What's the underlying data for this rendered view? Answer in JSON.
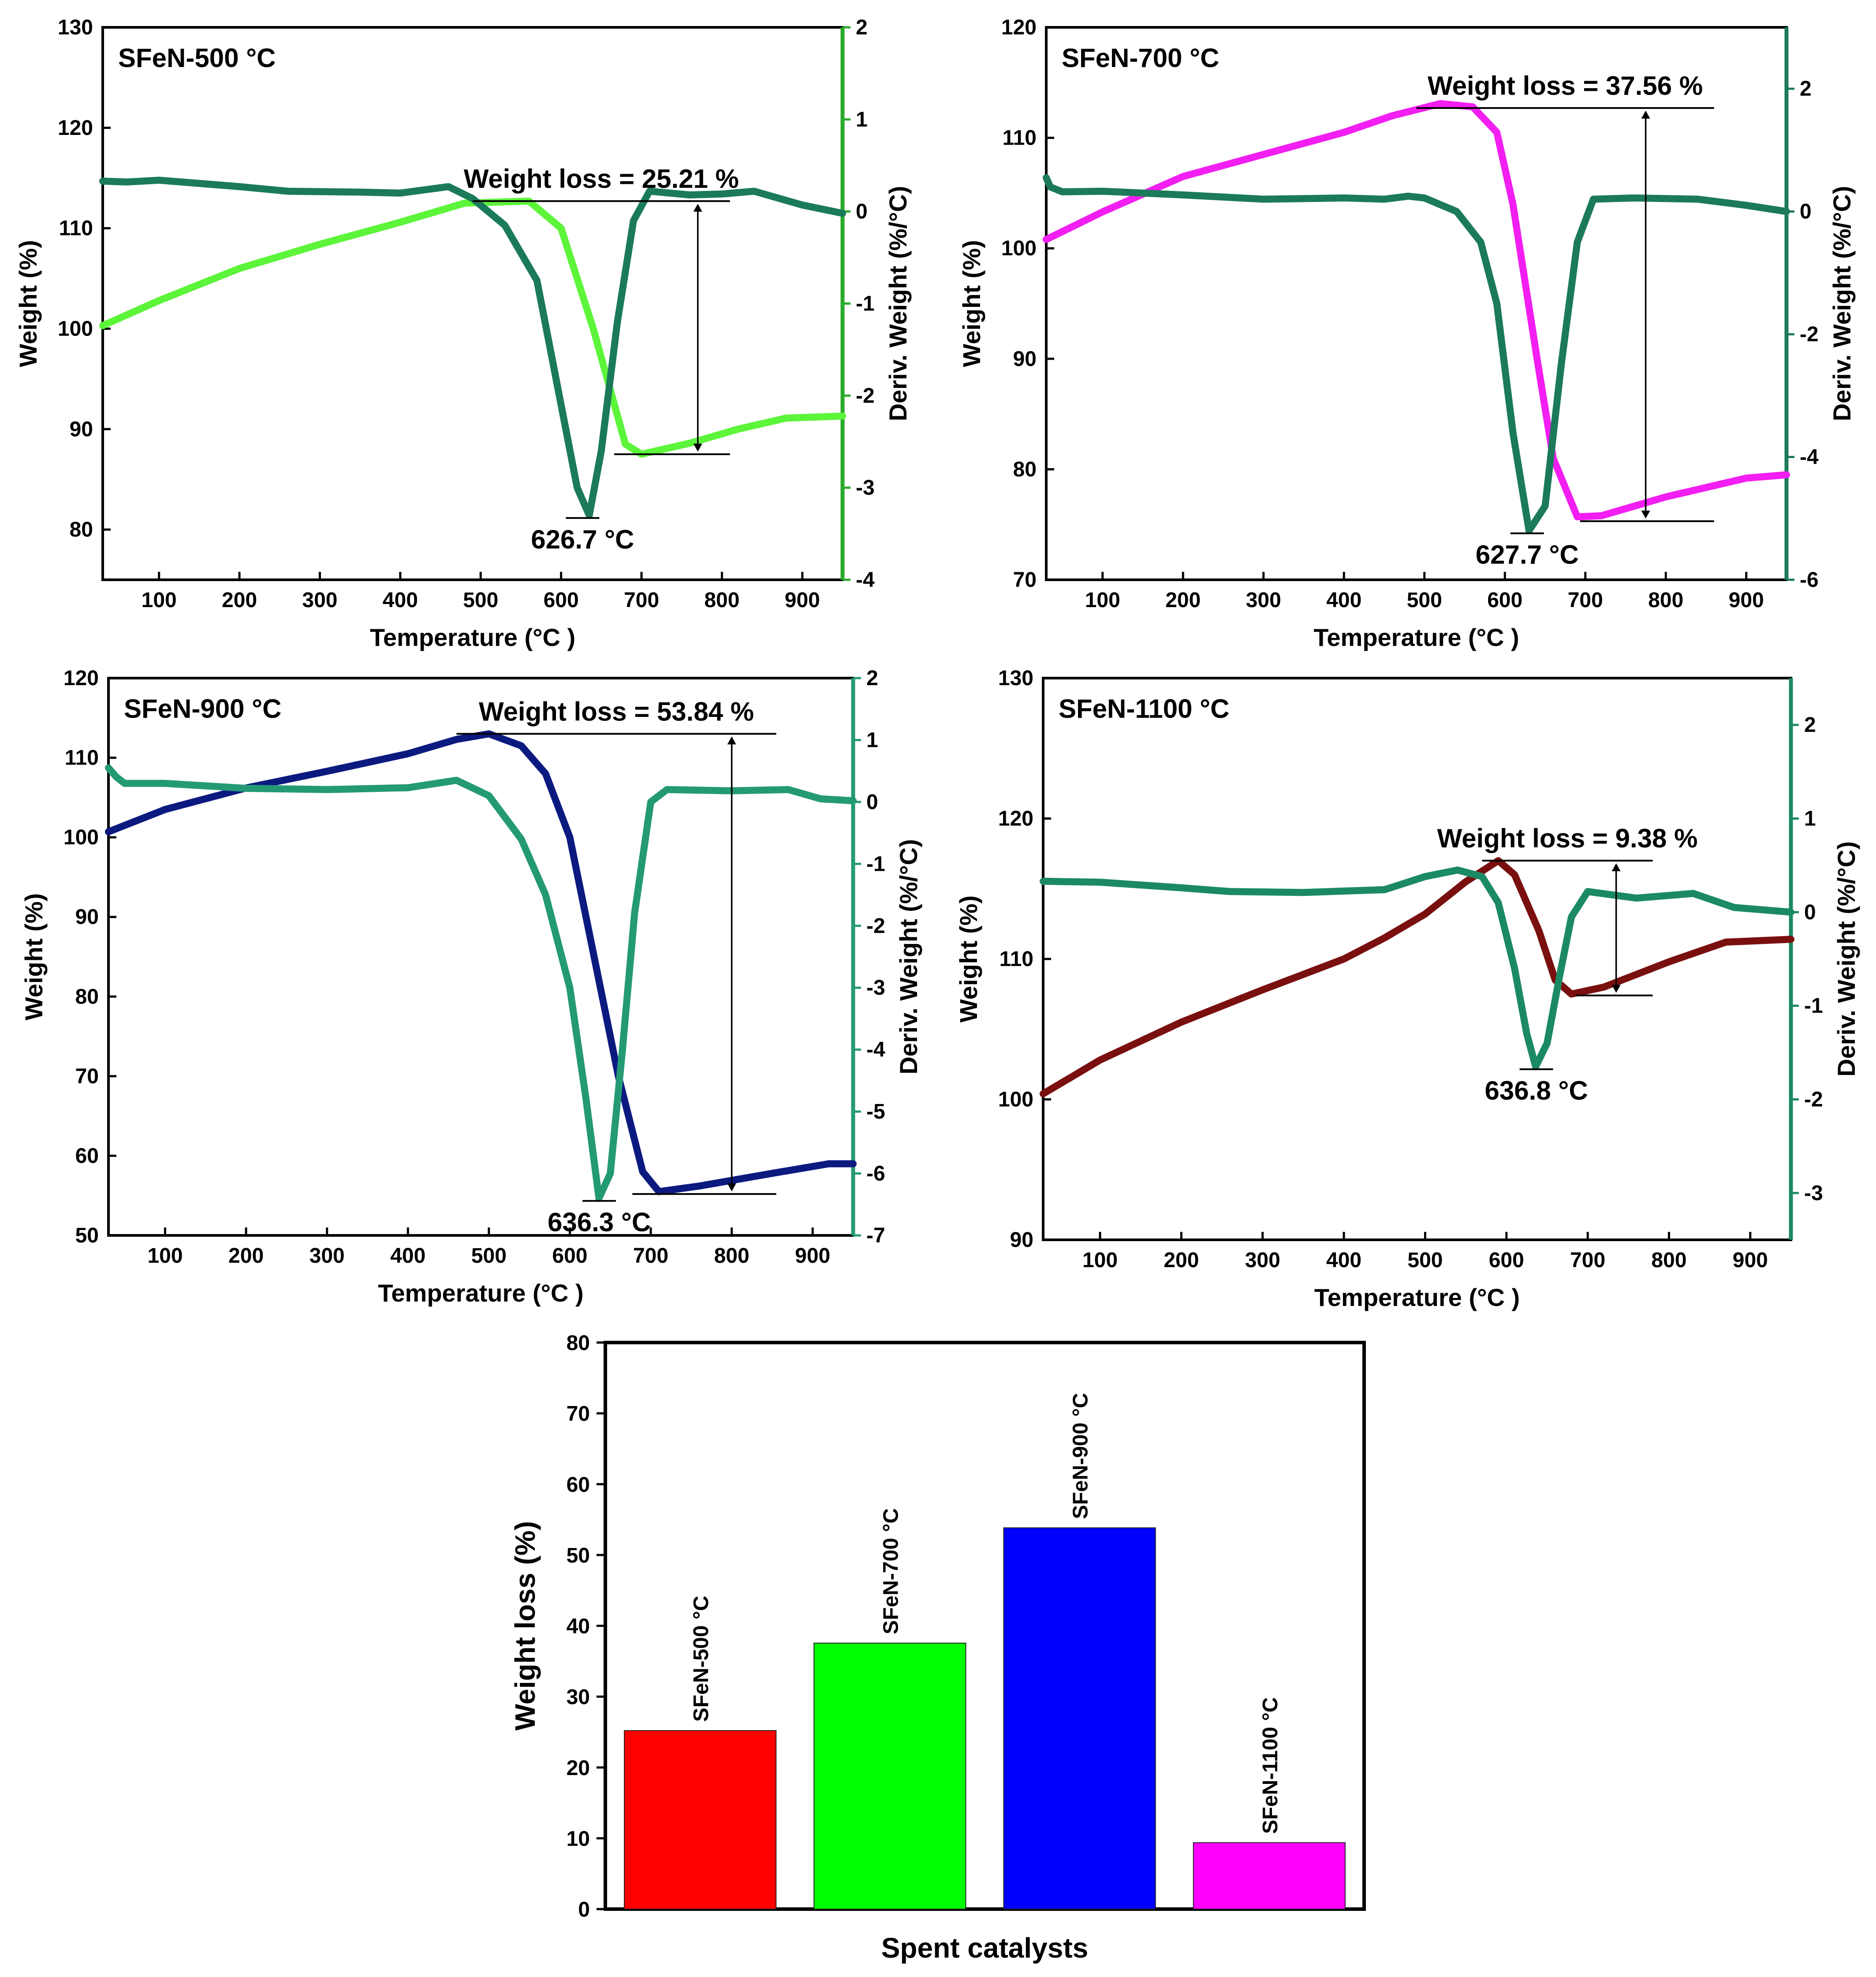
{
  "chart_data": [
    {
      "type": "line",
      "title": "SFeN-500 °C",
      "xlabel": "Temperature  (°C )",
      "ylabel": "Weight (%)",
      "y2label": "Deriv. Weight (%/°C)",
      "xlim": [
        30,
        950
      ],
      "ylim": [
        75,
        130
      ],
      "y2lim": [
        -4,
        2
      ],
      "xticks": [
        100,
        200,
        300,
        400,
        500,
        600,
        700,
        800,
        900
      ],
      "yticks": [
        80,
        90,
        100,
        110,
        120,
        130
      ],
      "y2ticks": [
        -4,
        -3,
        -2,
        -1,
        0,
        1,
        2
      ],
      "colors": {
        "weight": "#5cf53a",
        "deriv": "#1b7a5a",
        "axis_right": "#2aaa2a"
      },
      "peak_label": "626.7 °C",
      "peak_temp": 626.7,
      "loss_label": "Weight loss = 25.21 %",
      "loss": {
        "x1": 490,
        "y_top": 112.7,
        "x2": 810,
        "y_bottom": 87.5,
        "x_arrow": 770
      },
      "series": [
        {
          "name": "Weight",
          "axis": "left",
          "points": [
            [
              30,
              100.3
            ],
            [
              100,
              102.8
            ],
            [
              200,
              106.0
            ],
            [
              300,
              108.4
            ],
            [
              400,
              110.6
            ],
            [
              480,
              112.5
            ],
            [
              560,
              112.7
            ],
            [
              600,
              110.0
            ],
            [
              640,
              100.0
            ],
            [
              680,
              88.5
            ],
            [
              700,
              87.5
            ],
            [
              760,
              88.6
            ],
            [
              820,
              90.0
            ],
            [
              880,
              91.1
            ],
            [
              950,
              91.3
            ]
          ]
        },
        {
          "name": "Deriv. Weight",
          "axis": "right",
          "points": [
            [
              30,
              0.33
            ],
            [
              60,
              0.32
            ],
            [
              100,
              0.34
            ],
            [
              200,
              0.27
            ],
            [
              260,
              0.22
            ],
            [
              350,
              0.21
            ],
            [
              400,
              0.2
            ],
            [
              460,
              0.27
            ],
            [
              490,
              0.14
            ],
            [
              530,
              -0.15
            ],
            [
              570,
              -0.75
            ],
            [
              600,
              -2.1
            ],
            [
              620,
              -3.0
            ],
            [
              635,
              -3.3
            ],
            [
              650,
              -2.6
            ],
            [
              670,
              -1.2
            ],
            [
              690,
              -0.1
            ],
            [
              710,
              0.22
            ],
            [
              760,
              0.18
            ],
            [
              800,
              0.19
            ],
            [
              840,
              0.22
            ],
            [
              900,
              0.07
            ],
            [
              950,
              -0.02
            ]
          ]
        }
      ]
    },
    {
      "type": "line",
      "title": "SFeN-700 °C",
      "xlabel": "Temperature  (°C )",
      "ylabel": "Weight (%)",
      "y2label": "Deriv. Weight (%/°C)",
      "xlim": [
        30,
        950
      ],
      "ylim": [
        70,
        120
      ],
      "y2lim": [
        -6,
        3
      ],
      "xticks": [
        100,
        200,
        300,
        400,
        500,
        600,
        700,
        800,
        900
      ],
      "yticks": [
        70,
        80,
        90,
        100,
        110,
        120
      ],
      "y2ticks": [
        -6,
        -4,
        -2,
        0,
        2
      ],
      "colors": {
        "weight": "#f21ef2",
        "deriv": "#1b7a5a",
        "axis_right": "#1b7a5a"
      },
      "peak_label": "627.7 °C",
      "peak_temp": 627.7,
      "loss_label": "Weight loss = 37.56 %",
      "loss": {
        "x1": 490,
        "y_top": 112.7,
        "x2": 860,
        "y_bottom": 75.3,
        "x_arrow": 775
      },
      "series": [
        {
          "name": "Weight",
          "axis": "left",
          "points": [
            [
              30,
              100.8
            ],
            [
              100,
              103.3
            ],
            [
              200,
              106.5
            ],
            [
              300,
              108.5
            ],
            [
              400,
              110.5
            ],
            [
              460,
              112.0
            ],
            [
              520,
              113.1
            ],
            [
              560,
              112.8
            ],
            [
              590,
              110.5
            ],
            [
              610,
              104.0
            ],
            [
              640,
              90.0
            ],
            [
              660,
              81.0
            ],
            [
              690,
              75.7
            ],
            [
              720,
              75.8
            ],
            [
              800,
              77.5
            ],
            [
              900,
              79.2
            ],
            [
              950,
              79.5
            ]
          ]
        },
        {
          "name": "Deriv. Weight",
          "axis": "right",
          "points": [
            [
              30,
              0.55
            ],
            [
              35,
              0.4
            ],
            [
              50,
              0.32
            ],
            [
              100,
              0.33
            ],
            [
              200,
              0.27
            ],
            [
              300,
              0.2
            ],
            [
              400,
              0.22
            ],
            [
              450,
              0.2
            ],
            [
              480,
              0.25
            ],
            [
              500,
              0.22
            ],
            [
              540,
              0.0
            ],
            [
              570,
              -0.5
            ],
            [
              590,
              -1.5
            ],
            [
              610,
              -3.6
            ],
            [
              630,
              -5.2
            ],
            [
              650,
              -4.8
            ],
            [
              670,
              -2.5
            ],
            [
              690,
              -0.5
            ],
            [
              710,
              0.2
            ],
            [
              760,
              0.22
            ],
            [
              840,
              0.2
            ],
            [
              900,
              0.1
            ],
            [
              950,
              0.0
            ]
          ]
        }
      ]
    },
    {
      "type": "line",
      "title": "SFeN-900 °C",
      "xlabel": "Temperature  (°C )",
      "ylabel": "Weight (%)",
      "y2label": "Deriv. Weight (%/°C)",
      "xlim": [
        30,
        950
      ],
      "ylim": [
        50,
        120
      ],
      "y2lim": [
        -7,
        2
      ],
      "xticks": [
        100,
        200,
        300,
        400,
        500,
        600,
        700,
        800,
        900
      ],
      "yticks": [
        50,
        60,
        70,
        80,
        90,
        100,
        110,
        120
      ],
      "y2ticks": [
        -7,
        -6,
        -5,
        -4,
        -3,
        -2,
        -1,
        0,
        1,
        2
      ],
      "colors": {
        "weight": "#0c1a80",
        "deriv": "#249a74",
        "axis_right": "#249a74"
      },
      "peak_label": "636.3 °C",
      "peak_temp": 636.3,
      "loss_label": "Weight loss = 53.84 %",
      "loss": {
        "x1": 460,
        "y_top": 113.0,
        "x2": 855,
        "y_bottom": 55.2,
        "x_arrow": 800
      },
      "series": [
        {
          "name": "Weight",
          "axis": "left",
          "points": [
            [
              30,
              100.7
            ],
            [
              100,
              103.5
            ],
            [
              200,
              106.2
            ],
            [
              300,
              108.3
            ],
            [
              400,
              110.5
            ],
            [
              460,
              112.3
            ],
            [
              500,
              113.0
            ],
            [
              540,
              111.5
            ],
            [
              570,
              108.0
            ],
            [
              600,
              100.0
            ],
            [
              630,
              85.0
            ],
            [
              660,
              70.0
            ],
            [
              690,
              58.0
            ],
            [
              710,
              55.5
            ],
            [
              760,
              56.2
            ],
            [
              850,
              57.8
            ],
            [
              920,
              59.0
            ],
            [
              950,
              59.0
            ]
          ]
        },
        {
          "name": "Deriv. Weight",
          "axis": "right",
          "points": [
            [
              30,
              0.55
            ],
            [
              40,
              0.4
            ],
            [
              50,
              0.3
            ],
            [
              100,
              0.3
            ],
            [
              200,
              0.22
            ],
            [
              300,
              0.2
            ],
            [
              400,
              0.23
            ],
            [
              460,
              0.35
            ],
            [
              500,
              0.1
            ],
            [
              540,
              -0.6
            ],
            [
              570,
              -1.5
            ],
            [
              600,
              -3.0
            ],
            [
              620,
              -4.8
            ],
            [
              636,
              -6.4
            ],
            [
              650,
              -6.0
            ],
            [
              665,
              -4.0
            ],
            [
              680,
              -1.8
            ],
            [
              700,
              0.0
            ],
            [
              720,
              0.2
            ],
            [
              800,
              0.18
            ],
            [
              870,
              0.2
            ],
            [
              910,
              0.05
            ],
            [
              950,
              0.02
            ]
          ]
        }
      ]
    },
    {
      "type": "line",
      "title": "SFeN-1100 °C",
      "xlabel": "Temperature  (°C )",
      "ylabel": "Weight (%)",
      "y2label": "Deriv. Weight (%/°C)",
      "xlim": [
        30,
        950
      ],
      "ylim": [
        90,
        130
      ],
      "y2lim": [
        -3.5,
        2.5
      ],
      "xticks": [
        100,
        200,
        300,
        400,
        500,
        600,
        700,
        800,
        900
      ],
      "yticks": [
        90,
        100,
        110,
        120,
        130
      ],
      "y2ticks": [
        -3,
        -2,
        -1,
        0,
        1,
        2
      ],
      "colors": {
        "weight": "#7a0f0f",
        "deriv": "#1b8a62",
        "axis_right": "#1b8a62"
      },
      "peak_label": "636.8 °C",
      "peak_temp": 636.8,
      "loss_label": "Weight loss = 9.38 %",
      "loss": {
        "x1": 570,
        "y_top": 117.0,
        "x2": 780,
        "y_bottom": 107.4,
        "x_arrow": 735
      },
      "series": [
        {
          "name": "Weight",
          "axis": "left",
          "points": [
            [
              30,
              100.4
            ],
            [
              100,
              102.8
            ],
            [
              200,
              105.5
            ],
            [
              300,
              107.8
            ],
            [
              400,
              110.0
            ],
            [
              450,
              111.5
            ],
            [
              500,
              113.2
            ],
            [
              550,
              115.5
            ],
            [
              590,
              117.0
            ],
            [
              610,
              116.0
            ],
            [
              640,
              112.0
            ],
            [
              660,
              108.5
            ],
            [
              680,
              107.5
            ],
            [
              720,
              108.0
            ],
            [
              800,
              109.8
            ],
            [
              870,
              111.2
            ],
            [
              950,
              111.4
            ]
          ]
        },
        {
          "name": "Deriv. Weight",
          "axis": "right",
          "points": [
            [
              30,
              0.33
            ],
            [
              100,
              0.32
            ],
            [
              200,
              0.26
            ],
            [
              260,
              0.22
            ],
            [
              350,
              0.21
            ],
            [
              450,
              0.24
            ],
            [
              500,
              0.38
            ],
            [
              540,
              0.45
            ],
            [
              570,
              0.38
            ],
            [
              590,
              0.1
            ],
            [
              610,
              -0.6
            ],
            [
              625,
              -1.3
            ],
            [
              636,
              -1.65
            ],
            [
              650,
              -1.4
            ],
            [
              665,
              -0.7
            ],
            [
              680,
              -0.05
            ],
            [
              700,
              0.22
            ],
            [
              760,
              0.15
            ],
            [
              830,
              0.2
            ],
            [
              880,
              0.05
            ],
            [
              950,
              0.0
            ]
          ]
        }
      ]
    },
    {
      "type": "bar",
      "title": "",
      "xlabel": "Spent catalysts",
      "ylabel": "Weight loss (%)",
      "ylim": [
        0,
        80
      ],
      "yticks": [
        0,
        10,
        20,
        30,
        40,
        50,
        60,
        70,
        80
      ],
      "categories": [
        "SFeN-500 °C",
        "SFeN-700 °C",
        "SFeN-900 °C",
        "SFeN-1100 °C"
      ],
      "values": [
        25.21,
        37.56,
        53.84,
        9.38
      ],
      "colors": [
        "#ff0000",
        "#00ff00",
        "#0000ff",
        "#ff00ff"
      ]
    }
  ]
}
